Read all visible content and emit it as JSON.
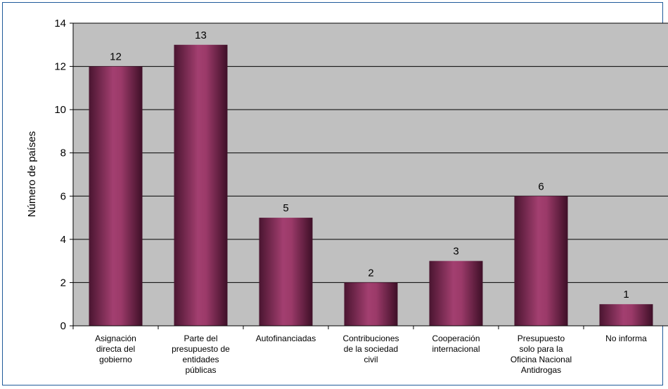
{
  "chart_data": {
    "type": "bar",
    "ylabel": "Número de países",
    "ylim": [
      0,
      14
    ],
    "yticks": [
      0,
      2,
      4,
      6,
      8,
      10,
      12,
      14
    ],
    "grid": true,
    "legend": "none",
    "categories": [
      [
        "Asignación",
        "directa del",
        "gobierno"
      ],
      [
        "Parte del",
        "presupuesto de",
        "entidades",
        "públicas"
      ],
      [
        "Autofinanciadas"
      ],
      [
        "Contribuciones",
        "de la sociedad",
        "civil"
      ],
      [
        "Cooperación",
        "internacional"
      ],
      [
        "Presupuesto",
        "solo para la",
        "Oficina Nacional",
        "Antidrogas"
      ],
      [
        "No informa"
      ]
    ],
    "values": [
      12,
      13,
      5,
      2,
      3,
      6,
      1
    ],
    "colors": {
      "bar": "#9b3d6b",
      "plot_bg": "#c0c0c0",
      "grid": "#000000"
    }
  }
}
